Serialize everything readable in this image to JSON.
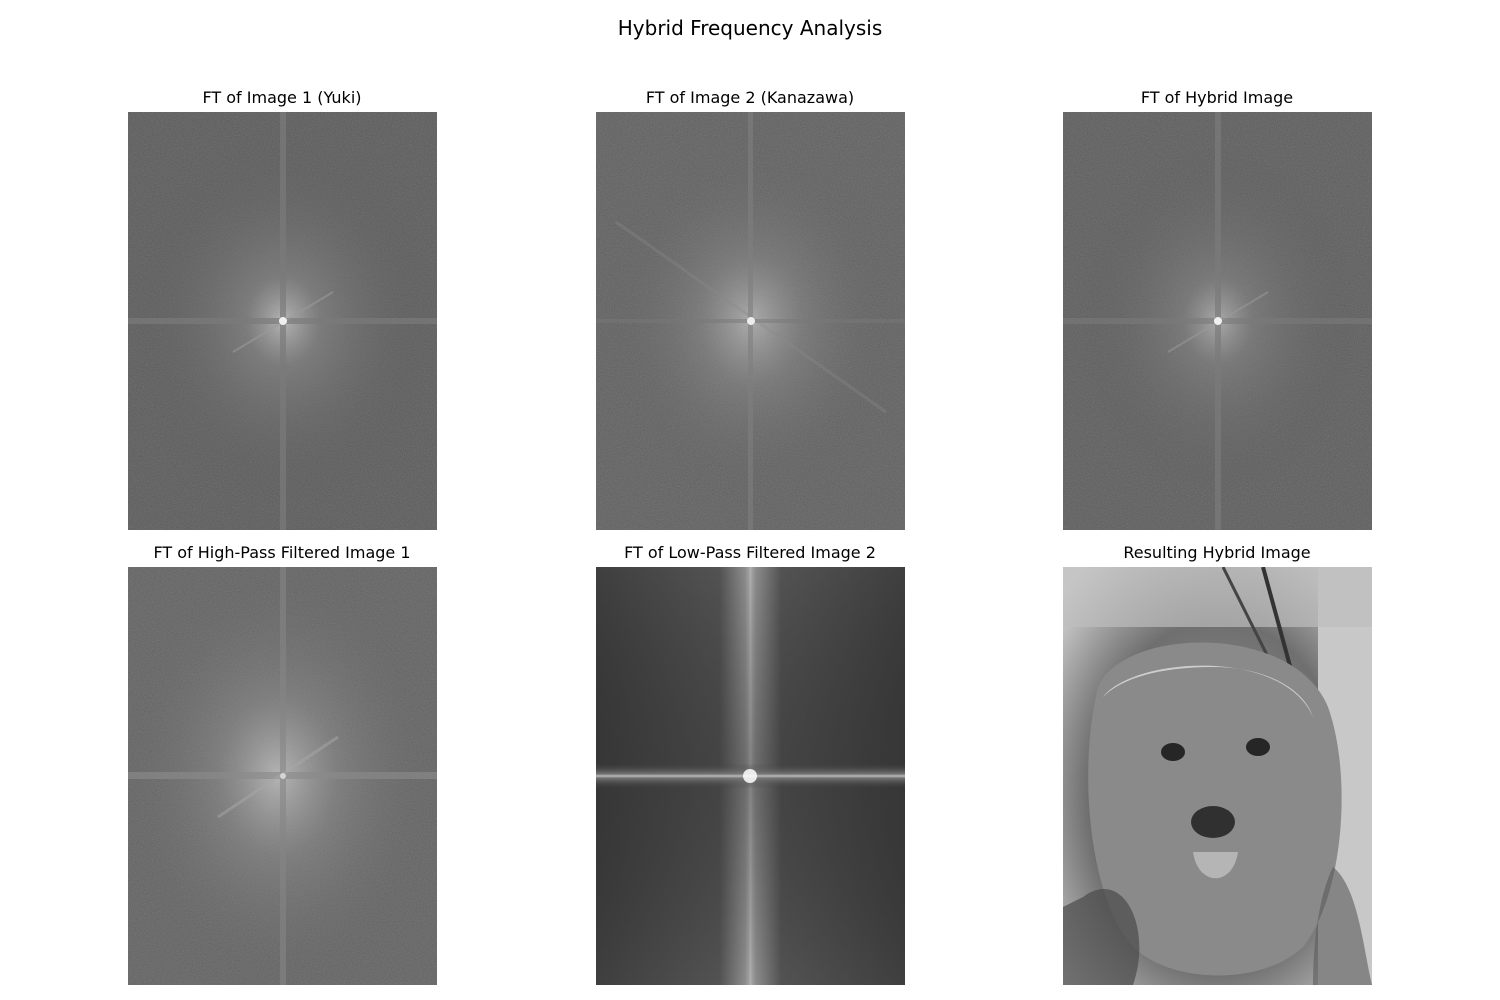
{
  "figure": {
    "title": "Hybrid Frequency Analysis",
    "panels": [
      {
        "title": "FT of Image 1 (Yuki)",
        "image": "fourier-spectrum-yuki"
      },
      {
        "title": "FT of Image 2 (Kanazawa)",
        "image": "fourier-spectrum-kanazawa"
      },
      {
        "title": "FT of Hybrid Image",
        "image": "fourier-spectrum-hybrid"
      },
      {
        "title": "FT of High-Pass Filtered Image 1",
        "image": "fourier-spectrum-high-pass"
      },
      {
        "title": "FT of Low-Pass Filtered Image 2",
        "image": "fourier-spectrum-low-pass"
      },
      {
        "title": "Resulting Hybrid Image",
        "image": "grayscale-shaggy-dog-photo"
      }
    ]
  }
}
